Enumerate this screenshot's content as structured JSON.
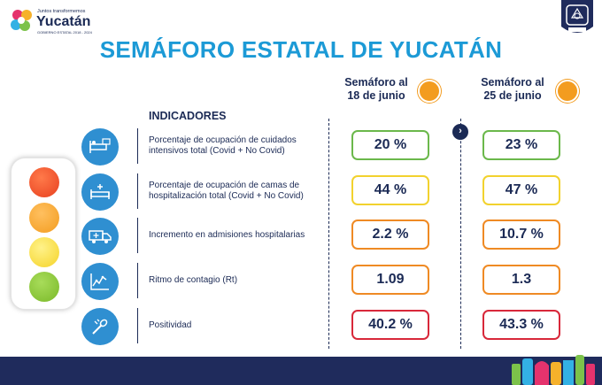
{
  "logo": {
    "line1": "Juntos transformemos",
    "line2": "Yucatán",
    "line3": "GOBIERNO ESTATAL 2018 - 2024",
    "shield_text": "YUCATÁN"
  },
  "title": "SEMÁFORO ESTATAL DE YUCATÁN",
  "columns": [
    {
      "line1": "Semáforo al",
      "line2": "18 de junio",
      "dot_color": "#f39c1f"
    },
    {
      "line1": "Semáforo al",
      "line2": "25 de junio",
      "dot_color": "#f39c1f"
    }
  ],
  "indicators_header": "INDICADORES",
  "rows": [
    {
      "icon": "icu-bed-icon",
      "label": "Porcentaje de ocupación de cuidados intensivos total (Covid + No Covid)",
      "v1": "20 %",
      "v2": "23 %",
      "c1": "#6bb84b",
      "c2": "#6bb84b"
    },
    {
      "icon": "hospital-bed-icon",
      "label": "Porcentaje de ocupación de camas de hospitalización total (Covid + No Covid)",
      "v1": "44 %",
      "v2": "47 %",
      "c1": "#f2d22e",
      "c2": "#f2d22e"
    },
    {
      "icon": "ambulance-icon",
      "label": "Incremento en admisiones hospitalarias",
      "v1": "2.2 %",
      "v2": "10.7 %",
      "c1": "#ef8a24",
      "c2": "#ef8a24"
    },
    {
      "icon": "trend-chart-icon",
      "label": "Ritmo de contagio (Rt)",
      "v1": "1.09",
      "v2": "1.3",
      "c1": "#ef8a24",
      "c2": "#ef8a24"
    },
    {
      "icon": "test-swab-icon",
      "label": "Positividad",
      "v1": "40.2 %",
      "v2": "43.3 %",
      "c1": "#d8283a",
      "c2": "#d8283a"
    }
  ],
  "traffic_light": [
    "#e8401f",
    "#f39c1f",
    "#f5d328",
    "#7ab929"
  ],
  "colors": {
    "title": "#1c9ad6",
    "navy": "#1b2a55",
    "icon_bg": "#2f8fd1",
    "footer": "#1f2b5c"
  }
}
